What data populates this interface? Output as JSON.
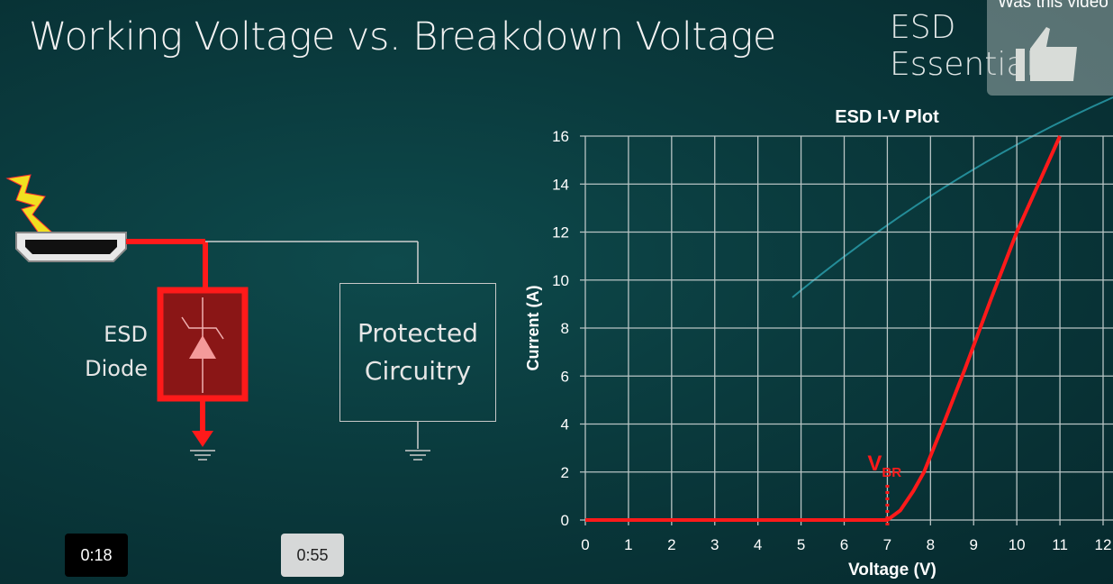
{
  "slide": {
    "title": "Working Voltage vs. Breakdown Voltage",
    "brand": "ESD Essentials"
  },
  "overlay": {
    "feedback_prompt": "Was this video",
    "thumbs_up_icon": "thumbs-up-icon"
  },
  "player": {
    "current_time": "0:18",
    "duration": "0:55"
  },
  "diagram": {
    "diode_label_1": "ESD",
    "diode_label_2": "Diode",
    "box_label_1": "Protected",
    "box_label_2": "Circuitry",
    "colors": {
      "surge_path": "#ff1a1a",
      "diode_fill": "#8a1616",
      "wire": "#cfcfcf"
    }
  },
  "chart_data": {
    "type": "line",
    "title": "ESD I-V Plot",
    "xlabel": "Voltage (V)",
    "ylabel": "Current (A)",
    "xlim": [
      0,
      12
    ],
    "ylim": [
      0,
      16
    ],
    "xticks": [
      "0",
      "1",
      "2",
      "3",
      "4",
      "5",
      "6",
      "7",
      "8",
      "9",
      "10",
      "11",
      "12"
    ],
    "yticks": [
      "0",
      "2",
      "4",
      "6",
      "8",
      "10",
      "12",
      "14",
      "16"
    ],
    "grid": true,
    "series": [
      {
        "color": "#ff1a1a",
        "x": [
          0,
          7,
          7.3,
          7.6,
          7.85,
          8.3,
          8.8,
          9.4,
          10,
          11
        ],
        "y": [
          0,
          0,
          0.4,
          1.2,
          2,
          4,
          6.3,
          9.2,
          12,
          16
        ]
      }
    ],
    "annotations": [
      {
        "text": "V",
        "subscript": "BR",
        "x": 7,
        "color": "#ff1a1a"
      }
    ]
  }
}
